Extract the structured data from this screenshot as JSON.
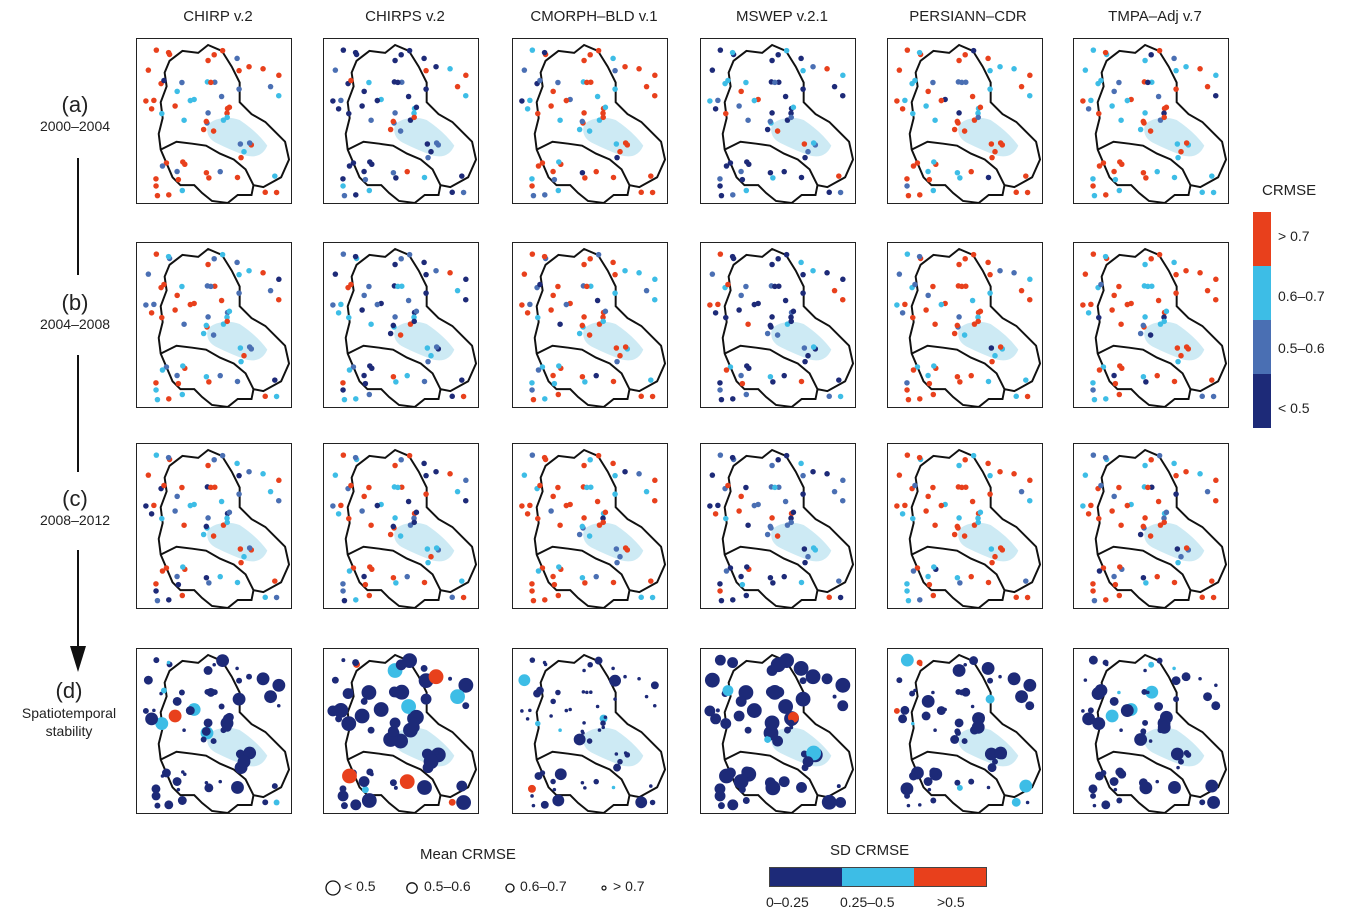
{
  "columns": [
    "CHIRP v.2",
    "CHIRPS v.2",
    "CMORPH–BLD v.1",
    "MSWEP v.2.1",
    "PERSIANN–CDR",
    "TMPA–Adj v.7"
  ],
  "rows": [
    {
      "letter": "(a)",
      "range": "2000–2004"
    },
    {
      "letter": "(b)",
      "range": "2004–2008"
    },
    {
      "letter": "(c)",
      "range": "2008–2012"
    },
    {
      "letter": "(d)",
      "range": "Spatiotemporal stability"
    }
  ],
  "crmse_legend": {
    "title": "CRMSE",
    "classes": [
      {
        "label": "> 0.7",
        "color": "#e8401c"
      },
      {
        "label": "0.6–0.7",
        "color": "#3dbde6"
      },
      {
        "label": "0.5–0.6",
        "color": "#4a6fb3"
      },
      {
        "label": "< 0.5",
        "color": "#1d2a78"
      }
    ]
  },
  "mean_legend": {
    "title": "Mean CRMSE",
    "items": [
      "< 0.5",
      "0.5–0.6",
      "0.6–0.7",
      "> 0.7"
    ]
  },
  "sd_legend": {
    "title": "SD CRMSE",
    "classes": [
      {
        "label": "0–0.25",
        "color": "#1d2a78"
      },
      {
        "label": "0.25–0.5",
        "color": "#3dbde6"
      },
      {
        "label": ">0.5",
        "color": "#e8401c"
      }
    ]
  },
  "panel_styles": {
    "r0": [
      "warm",
      "cool",
      "warm",
      "cool",
      "warm",
      "warm"
    ],
    "r1": [
      "mixed",
      "cool",
      "warm",
      "cool",
      "warm",
      "warm"
    ],
    "r2": [
      "mixed",
      "mixed",
      "warm",
      "cool",
      "warm",
      "warm"
    ],
    "r3": [
      "sizes-mid",
      "sizes-big",
      "sizes-small",
      "sizes-big",
      "sizes-mid",
      "sizes-mid"
    ]
  }
}
